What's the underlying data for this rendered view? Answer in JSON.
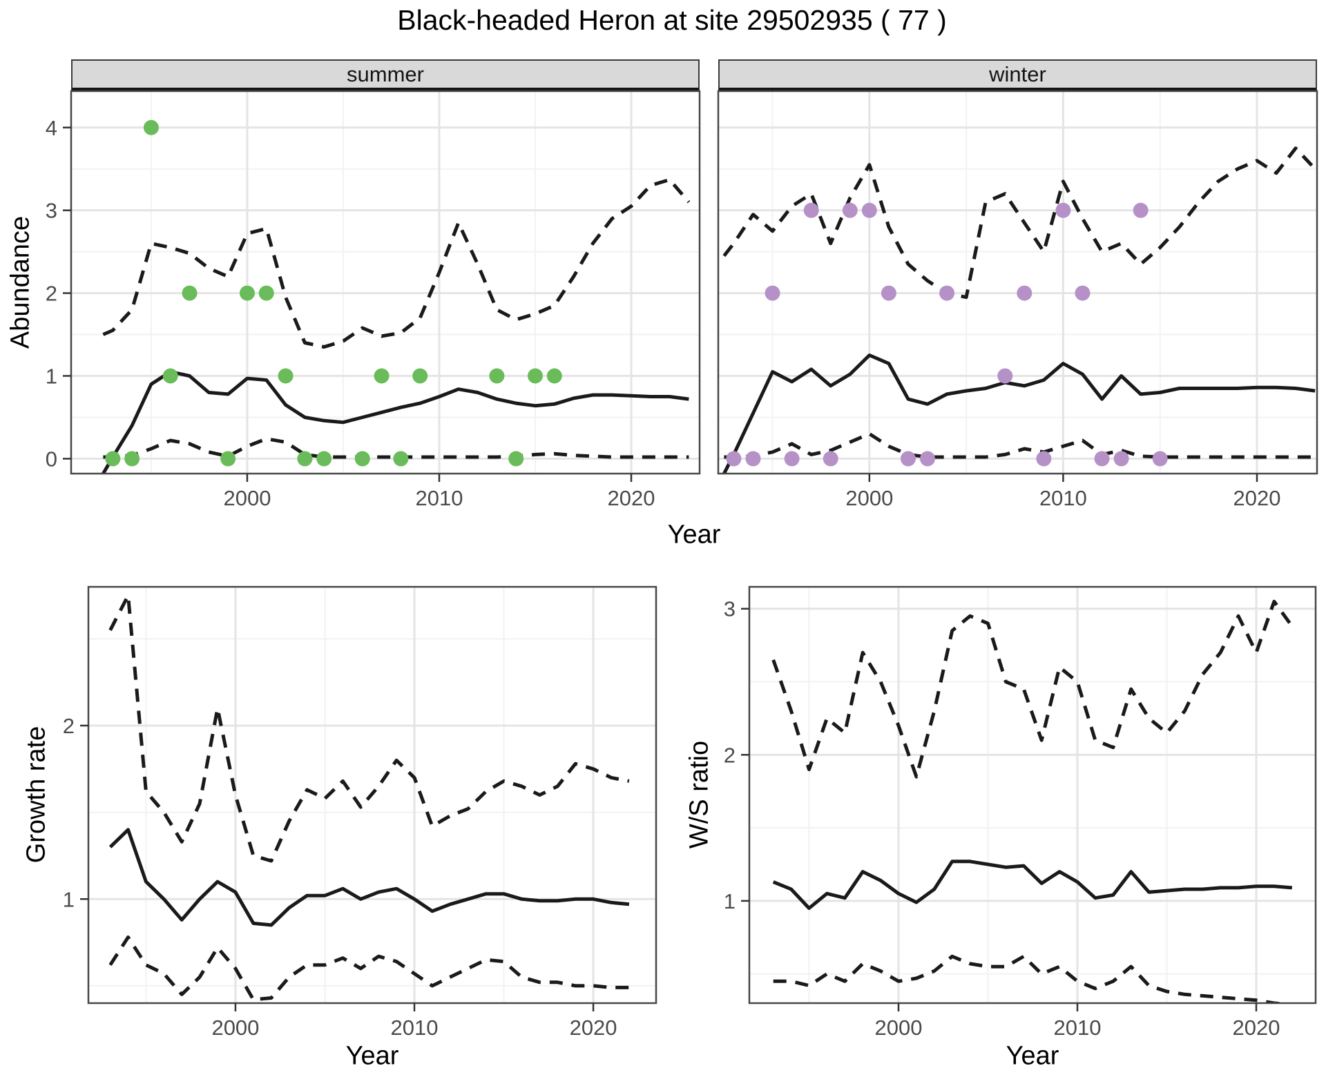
{
  "title": "Black-headed Heron at site 29502935 ( 77 )",
  "axis_titles": {
    "abundance": "Abundance",
    "year": "Year",
    "growth_rate": "Growth rate",
    "ws_ratio": "W/S ratio"
  },
  "colors": {
    "line": "#1a1a1a",
    "summer_points": "#6abc5a",
    "winter_points": "#b591c8",
    "grid_major": "#e4e4e4",
    "grid_minor": "#f2f2f2",
    "panel_border": "#474747",
    "tick": "#333333",
    "tick_label": "#4a4a4a",
    "strip_bg": "#d9d9d9"
  },
  "chart_data": [
    {
      "id": "summer",
      "type": "line+scatter",
      "facet_label": "summer",
      "xlabel": "Year",
      "ylabel": "Abundance",
      "xlim": [
        1990.83,
        2023.56
      ],
      "ylim": [
        -0.18,
        4.44
      ],
      "xticks": {
        "major": [
          2000,
          2010,
          2020
        ],
        "labels": [
          "2000",
          "2010",
          "2020"
        ],
        "minor": [
          1995,
          2005,
          2015
        ],
        "show": true
      },
      "yticks": {
        "major": [
          0,
          1,
          2,
          3,
          4
        ],
        "labels": [
          "0",
          "1",
          "2",
          "3",
          "4"
        ],
        "minor": [
          0.5,
          1.5,
          2.5,
          3.5
        ],
        "show": true
      },
      "x": [
        1992.5,
        1993,
        1994,
        1995,
        1996,
        1997,
        1998,
        1999,
        2000,
        2001,
        2002,
        2003,
        2004,
        2005,
        2006,
        2007,
        2008,
        2009,
        2010,
        2011,
        2012,
        2013,
        2014,
        2015,
        2016,
        2017,
        2018,
        2019,
        2020,
        2021,
        2022,
        2023
      ],
      "series": [
        {
          "name": "lower_95ci",
          "style": "dashed",
          "values": [
            0.02,
            0.02,
            0.04,
            0.12,
            0.22,
            0.18,
            0.08,
            0.03,
            0.15,
            0.24,
            0.2,
            0.05,
            0.02,
            0.02,
            0.02,
            0.02,
            0.02,
            0.02,
            0.02,
            0.02,
            0.02,
            0.02,
            0.03,
            0.05,
            0.06,
            0.04,
            0.03,
            0.02,
            0.02,
            0.02,
            0.02,
            0.02
          ]
        },
        {
          "name": "upper_95ci",
          "style": "dashed",
          "values": [
            1.5,
            1.55,
            1.8,
            2.6,
            2.55,
            2.48,
            2.3,
            2.2,
            2.72,
            2.78,
            1.95,
            1.4,
            1.35,
            1.42,
            1.58,
            1.48,
            1.52,
            1.7,
            2.25,
            2.85,
            2.35,
            1.8,
            1.68,
            1.75,
            1.85,
            2.2,
            2.6,
            2.9,
            3.05,
            3.3,
            3.37,
            3.1
          ]
        },
        {
          "name": "median",
          "style": "solid",
          "values": [
            -0.18,
            0.02,
            0.4,
            0.9,
            1.05,
            1.0,
            0.8,
            0.78,
            0.97,
            0.95,
            0.65,
            0.5,
            0.46,
            0.44,
            0.5,
            0.56,
            0.62,
            0.67,
            0.75,
            0.84,
            0.8,
            0.72,
            0.67,
            0.64,
            0.66,
            0.73,
            0.77,
            0.77,
            0.76,
            0.75,
            0.75,
            0.72
          ]
        }
      ],
      "points": {
        "name": "summer-observations",
        "color": "#6abc5a",
        "r": 11,
        "data": [
          [
            1993,
            0
          ],
          [
            1994,
            0
          ],
          [
            1995,
            4
          ],
          [
            1996,
            1
          ],
          [
            1997,
            2
          ],
          [
            1999,
            0
          ],
          [
            2000,
            2
          ],
          [
            2001,
            2
          ],
          [
            2002,
            1
          ],
          [
            2003,
            0
          ],
          [
            2004,
            0
          ],
          [
            2006,
            0
          ],
          [
            2007,
            1
          ],
          [
            2008,
            0
          ],
          [
            2009,
            1
          ],
          [
            2013,
            1
          ],
          [
            2014,
            0
          ],
          [
            2015,
            1
          ],
          [
            2016,
            1
          ]
        ]
      }
    },
    {
      "id": "winter",
      "type": "line+scatter",
      "facet_label": "winter",
      "xlabel": "Year",
      "ylabel": "Abundance",
      "xlim": [
        1992.2,
        2023.1
      ],
      "ylim": [
        -0.18,
        4.44
      ],
      "xticks": {
        "major": [
          2000,
          2010,
          2020
        ],
        "labels": [
          "2000",
          "2010",
          "2020"
        ],
        "minor": [
          1995,
          2005,
          2015
        ],
        "show": true
      },
      "yticks": {
        "major": [
          0,
          1,
          2,
          3,
          4
        ],
        "labels": [
          "0",
          "1",
          "2",
          "3",
          "4"
        ],
        "minor": [
          0.5,
          1.5,
          2.5,
          3.5
        ],
        "show": false
      },
      "x": [
        1992.5,
        1993,
        1994,
        1995,
        1996,
        1997,
        1998,
        1999,
        2000,
        2001,
        2002,
        2003,
        2004,
        2005,
        2006,
        2007,
        2008,
        2009,
        2010,
        2011,
        2012,
        2013,
        2014,
        2015,
        2016,
        2017,
        2018,
        2019,
        2020,
        2021,
        2022,
        2023
      ],
      "series": [
        {
          "name": "lower_95ci",
          "style": "dashed",
          "values": [
            0.02,
            0.02,
            0.03,
            0.08,
            0.18,
            0.05,
            0.1,
            0.2,
            0.3,
            0.15,
            0.05,
            0.02,
            0.02,
            0.02,
            0.02,
            0.05,
            0.12,
            0.08,
            0.15,
            0.22,
            0.05,
            0.1,
            0.03,
            0.02,
            0.02,
            0.02,
            0.02,
            0.02,
            0.02,
            0.02,
            0.02,
            0.02
          ]
        },
        {
          "name": "upper_95ci",
          "style": "dashed",
          "values": [
            2.45,
            2.6,
            2.95,
            2.75,
            3.05,
            3.2,
            2.6,
            3.15,
            3.55,
            2.8,
            2.35,
            2.15,
            2.0,
            1.95,
            3.1,
            3.2,
            2.85,
            2.5,
            3.35,
            2.9,
            2.5,
            2.6,
            2.35,
            2.55,
            2.8,
            3.1,
            3.35,
            3.5,
            3.6,
            3.45,
            3.75,
            3.5
          ]
        },
        {
          "name": "median",
          "style": "solid",
          "values": [
            -0.18,
            0.05,
            0.55,
            1.05,
            0.93,
            1.08,
            0.88,
            1.02,
            1.25,
            1.15,
            0.72,
            0.66,
            0.78,
            0.82,
            0.85,
            0.92,
            0.88,
            0.95,
            1.15,
            1.02,
            0.72,
            1.0,
            0.78,
            0.8,
            0.85,
            0.85,
            0.85,
            0.85,
            0.86,
            0.86,
            0.85,
            0.82
          ]
        }
      ],
      "points": {
        "name": "winter-observations",
        "color": "#b591c8",
        "r": 11,
        "data": [
          [
            1993,
            0
          ],
          [
            1994,
            0
          ],
          [
            1995,
            2
          ],
          [
            1996,
            0
          ],
          [
            1997,
            3
          ],
          [
            1998,
            0
          ],
          [
            1999,
            3
          ],
          [
            2000,
            3
          ],
          [
            2001,
            2
          ],
          [
            2002,
            0
          ],
          [
            2003,
            0
          ],
          [
            2004,
            2
          ],
          [
            2007,
            1
          ],
          [
            2008,
            2
          ],
          [
            2009,
            0
          ],
          [
            2010,
            3
          ],
          [
            2011,
            2
          ],
          [
            2012,
            0
          ],
          [
            2013,
            0
          ],
          [
            2014,
            3
          ],
          [
            2015,
            0
          ]
        ]
      }
    },
    {
      "id": "growth",
      "type": "line",
      "facet_label": "",
      "xlabel": "Year",
      "ylabel": "Growth rate",
      "xlim": [
        1991.78,
        2023.51
      ],
      "ylim": [
        0.4,
        2.8
      ],
      "xticks": {
        "major": [
          2000,
          2010,
          2020
        ],
        "labels": [
          "2000",
          "2010",
          "2020"
        ],
        "minor": [
          1995,
          2005,
          2015
        ],
        "show": true
      },
      "yticks": {
        "major": [
          1,
          2
        ],
        "labels": [
          "1",
          "2"
        ],
        "minor": [
          0.5,
          1.5,
          2.5
        ],
        "show": true
      },
      "x": [
        1993,
        1994,
        1995,
        1996,
        1997,
        1998,
        1999,
        2000,
        2001,
        2002,
        2003,
        2004,
        2005,
        2006,
        2007,
        2008,
        2009,
        2010,
        2011,
        2012,
        2013,
        2014,
        2015,
        2016,
        2017,
        2018,
        2019,
        2020,
        2021,
        2022
      ],
      "series": [
        {
          "name": "lower_95ci",
          "style": "dashed",
          "values": [
            0.62,
            0.78,
            0.62,
            0.57,
            0.45,
            0.55,
            0.72,
            0.6,
            0.42,
            0.43,
            0.55,
            0.62,
            0.62,
            0.66,
            0.6,
            0.67,
            0.64,
            0.57,
            0.5,
            0.55,
            0.6,
            0.65,
            0.64,
            0.55,
            0.52,
            0.52,
            0.5,
            0.5,
            0.49,
            0.49
          ]
        },
        {
          "name": "upper_95ci",
          "style": "dashed",
          "values": [
            2.55,
            2.75,
            1.62,
            1.5,
            1.33,
            1.55,
            2.1,
            1.6,
            1.25,
            1.22,
            1.45,
            1.63,
            1.58,
            1.68,
            1.53,
            1.65,
            1.8,
            1.7,
            1.42,
            1.48,
            1.52,
            1.62,
            1.68,
            1.65,
            1.6,
            1.65,
            1.78,
            1.75,
            1.7,
            1.68
          ]
        },
        {
          "name": "median",
          "style": "solid",
          "values": [
            1.3,
            1.4,
            1.1,
            1.0,
            0.88,
            1.0,
            1.1,
            1.04,
            0.86,
            0.85,
            0.95,
            1.02,
            1.02,
            1.06,
            1.0,
            1.04,
            1.06,
            1.0,
            0.93,
            0.97,
            1.0,
            1.03,
            1.03,
            1.0,
            0.99,
            0.99,
            1.0,
            1.0,
            0.98,
            0.97
          ]
        }
      ],
      "points": null
    },
    {
      "id": "ws",
      "type": "line",
      "facet_label": "",
      "xlabel": "Year",
      "ylabel": "W/S ratio",
      "xlim": [
        1991.66,
        2023.32
      ],
      "ylim": [
        0.3,
        3.15
      ],
      "xticks": {
        "major": [
          2000,
          2010,
          2020
        ],
        "labels": [
          "2000",
          "2010",
          "2020"
        ],
        "minor": [
          1995,
          2005,
          2015
        ],
        "show": true
      },
      "yticks": {
        "major": [
          1,
          2,
          3
        ],
        "labels": [
          "1",
          "2",
          "3"
        ],
        "minor": [
          0.5,
          1.5,
          2.5
        ],
        "show": true
      },
      "x": [
        1993,
        1994,
        1995,
        1996,
        1997,
        1998,
        1999,
        2000,
        2001,
        2002,
        2003,
        2004,
        2005,
        2006,
        2007,
        2008,
        2009,
        2010,
        2011,
        2012,
        2013,
        2014,
        2015,
        2016,
        2017,
        2018,
        2019,
        2020,
        2021,
        2022
      ],
      "series": [
        {
          "name": "lower_95ci",
          "style": "dashed",
          "values": [
            0.45,
            0.45,
            0.42,
            0.5,
            0.45,
            0.57,
            0.52,
            0.45,
            0.47,
            0.52,
            0.62,
            0.57,
            0.55,
            0.55,
            0.62,
            0.5,
            0.55,
            0.45,
            0.4,
            0.45,
            0.55,
            0.42,
            0.38,
            0.36,
            0.35,
            0.34,
            0.33,
            0.32,
            0.3,
            0.29
          ]
        },
        {
          "name": "upper_95ci",
          "style": "dashed",
          "values": [
            2.65,
            2.3,
            1.9,
            2.25,
            2.15,
            2.7,
            2.5,
            2.2,
            1.85,
            2.3,
            2.85,
            2.95,
            2.9,
            2.5,
            2.45,
            2.1,
            2.6,
            2.5,
            2.1,
            2.05,
            2.45,
            2.25,
            2.15,
            2.3,
            2.55,
            2.7,
            2.95,
            2.7,
            3.05,
            2.88
          ]
        },
        {
          "name": "median",
          "style": "solid",
          "values": [
            1.13,
            1.08,
            0.95,
            1.05,
            1.02,
            1.2,
            1.14,
            1.05,
            0.99,
            1.08,
            1.27,
            1.27,
            1.25,
            1.23,
            1.24,
            1.12,
            1.2,
            1.13,
            1.02,
            1.04,
            1.2,
            1.06,
            1.07,
            1.08,
            1.08,
            1.09,
            1.09,
            1.1,
            1.1,
            1.09
          ]
        }
      ],
      "points": null
    }
  ]
}
